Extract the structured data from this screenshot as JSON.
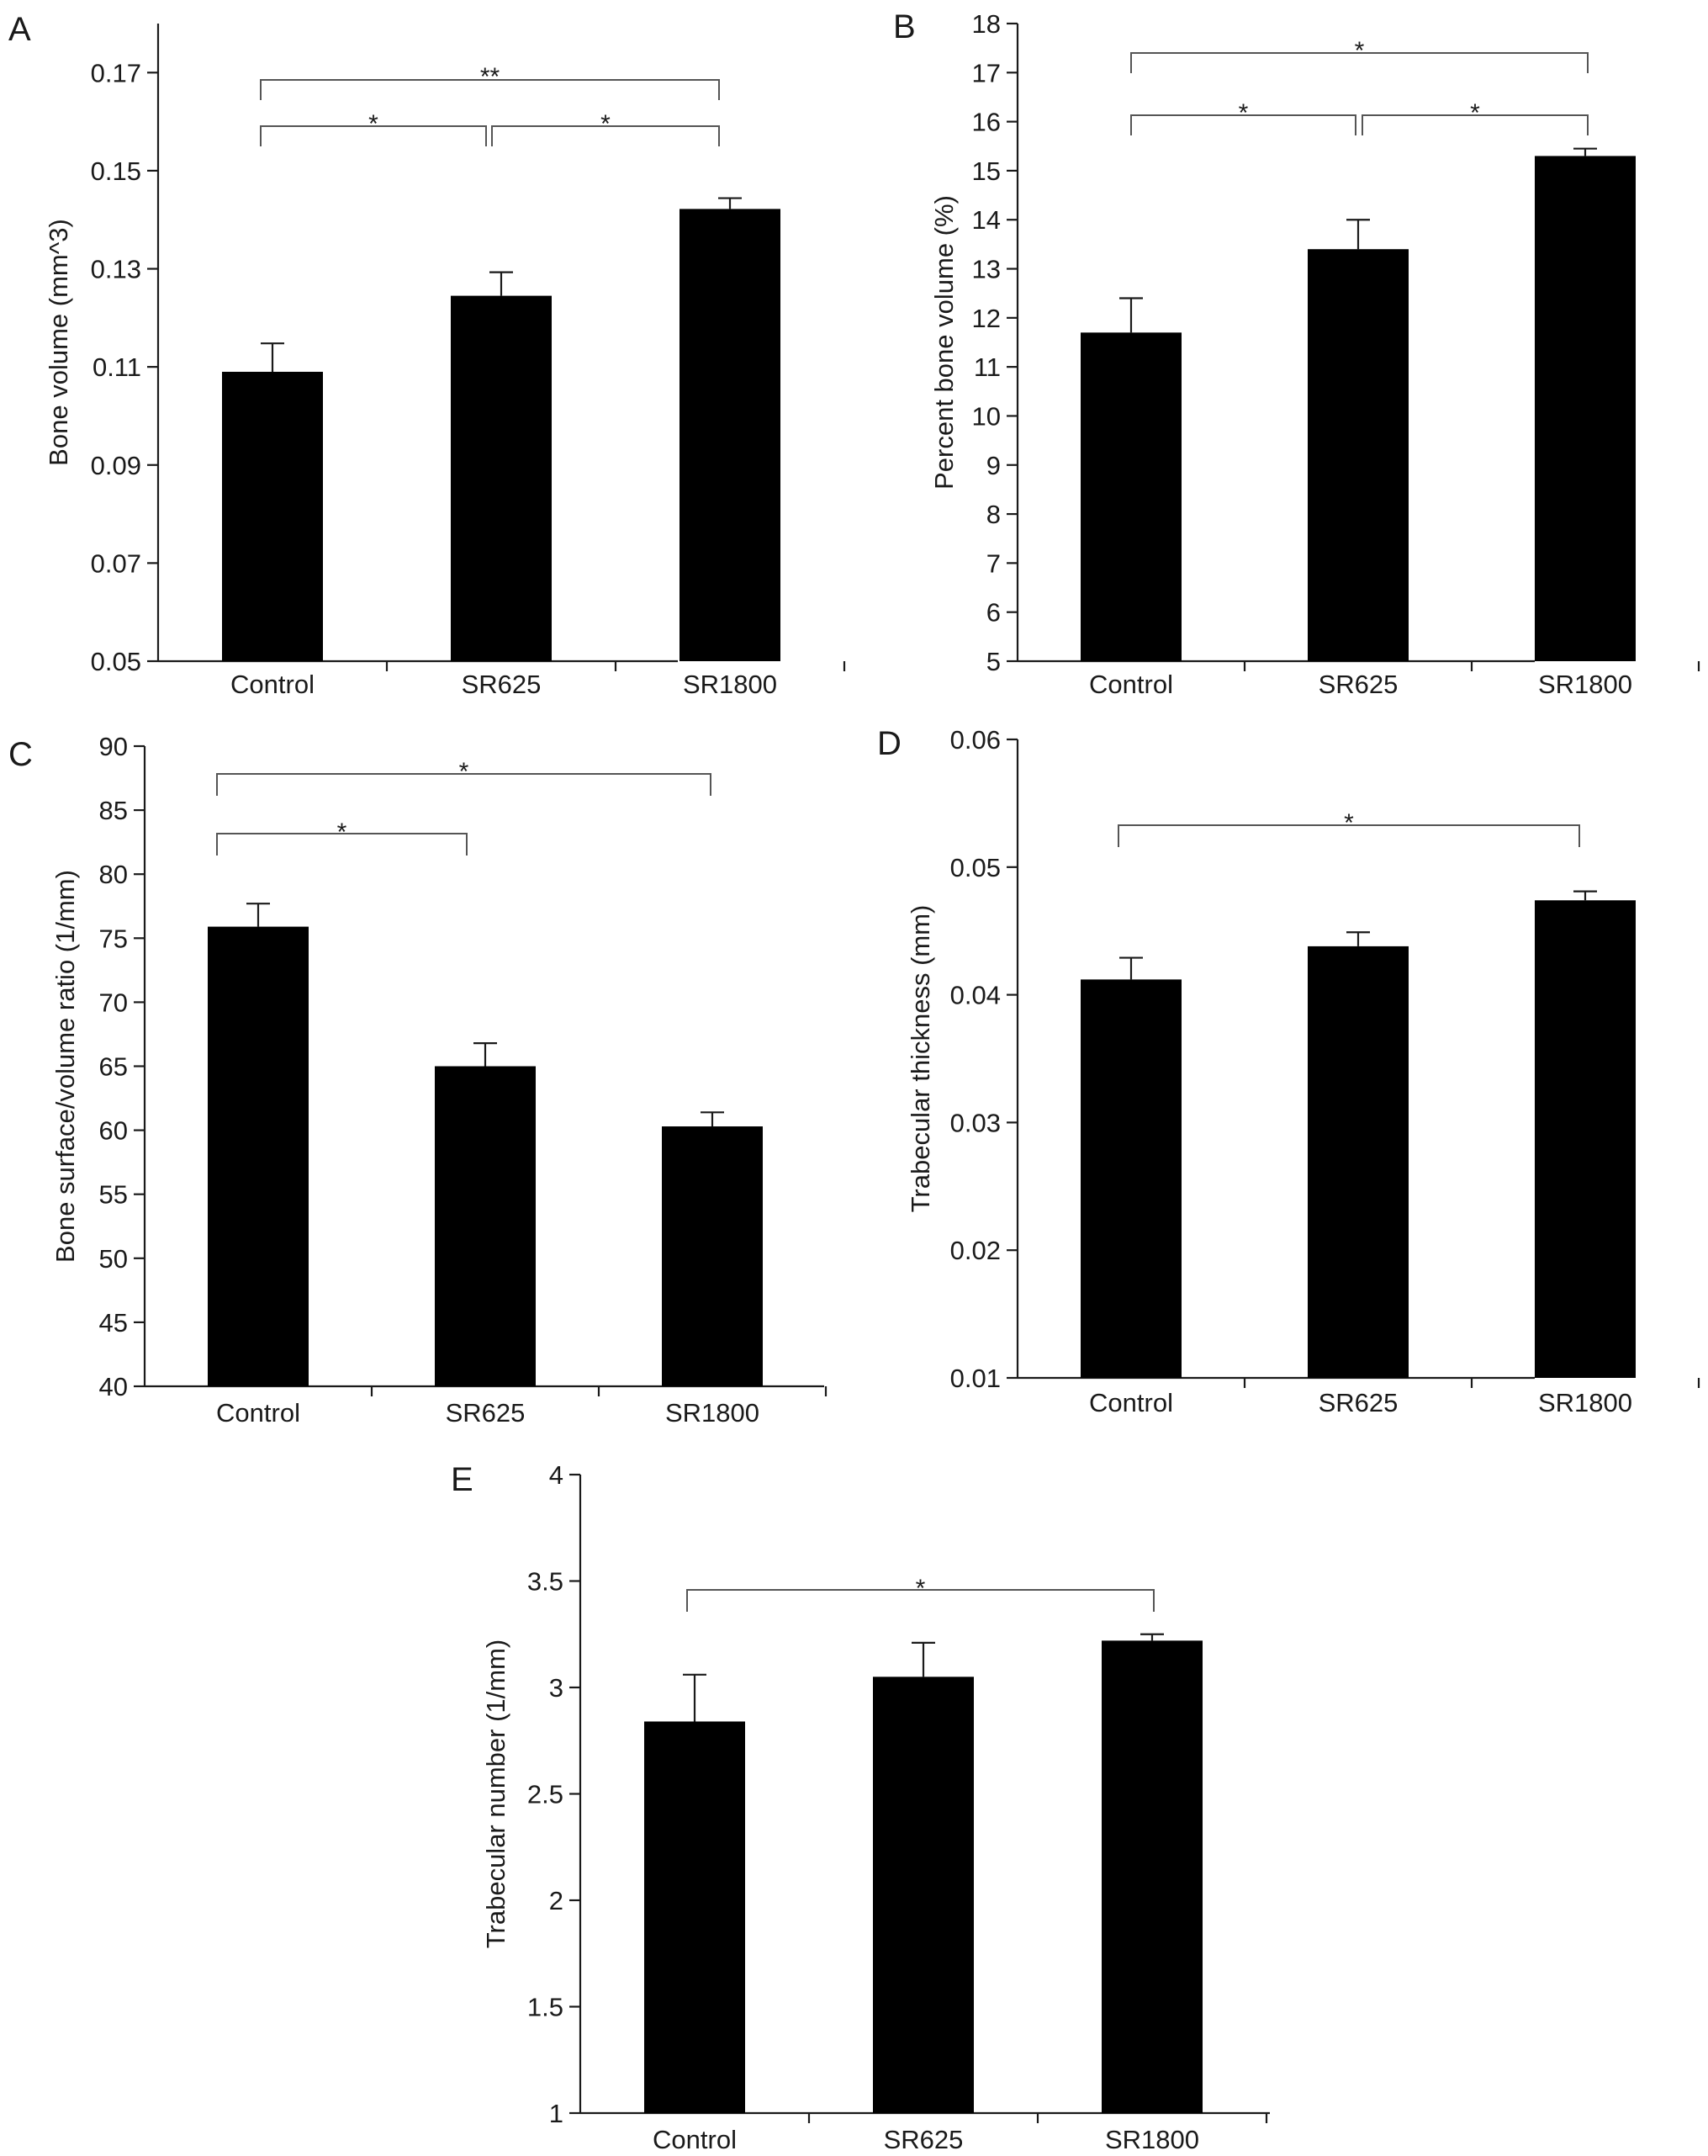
{
  "chart_data": [
    {
      "panel": "A",
      "type": "bar",
      "categories": [
        "Control",
        "SR625",
        "SR1800"
      ],
      "values": [
        0.109,
        0.1245,
        0.1422
      ],
      "errors": [
        0.0058,
        0.0048,
        0.0022
      ],
      "ylabel": "Bone volume (mm^3)",
      "ylim": [
        0.05,
        0.18
      ],
      "yticks": [
        "0.05",
        "0.07",
        "0.09",
        "0.11",
        "0.13",
        "0.15",
        "0.17"
      ],
      "grid": false,
      "significance": [
        {
          "from": 0,
          "to": 1,
          "label": "*"
        },
        {
          "from": 1,
          "to": 2,
          "label": "*"
        },
        {
          "from": 0,
          "to": 2,
          "label": "**"
        }
      ]
    },
    {
      "panel": "B",
      "type": "bar",
      "categories": [
        "Control",
        "SR625",
        "SR1800"
      ],
      "values": [
        11.7,
        13.4,
        15.3
      ],
      "errors": [
        0.7,
        0.6,
        0.15
      ],
      "ylabel": "Percent bone volume (%)",
      "ylim": [
        5,
        18
      ],
      "yticks": [
        "5",
        "6",
        "7",
        "8",
        "9",
        "10",
        "11",
        "12",
        "13",
        "14",
        "15",
        "16",
        "17",
        "18"
      ],
      "grid": false,
      "significance": [
        {
          "from": 0,
          "to": 1,
          "label": "*"
        },
        {
          "from": 1,
          "to": 2,
          "label": "*"
        },
        {
          "from": 0,
          "to": 2,
          "label": "*"
        }
      ]
    },
    {
      "panel": "C",
      "type": "bar",
      "categories": [
        "Control",
        "SR625",
        "SR1800"
      ],
      "values": [
        75.9,
        65.0,
        60.3
      ],
      "errors": [
        1.8,
        1.8,
        1.1
      ],
      "ylabel": "Bone surface/volume ratio (1/mm)",
      "ylim": [
        40,
        90
      ],
      "yticks": [
        "40",
        "45",
        "50",
        "55",
        "60",
        "65",
        "70",
        "75",
        "80",
        "85",
        "90"
      ],
      "grid": false,
      "significance": [
        {
          "from": 0,
          "to": 1,
          "label": "*"
        },
        {
          "from": 0,
          "to": 2,
          "label": "*"
        }
      ]
    },
    {
      "panel": "D",
      "type": "bar",
      "categories": [
        "Control",
        "SR625",
        "SR1800"
      ],
      "values": [
        0.0412,
        0.0438,
        0.0474
      ],
      "errors": [
        0.0017,
        0.0011,
        0.0007
      ],
      "ylabel": "Trabecular thickness (mm)",
      "ylim": [
        0.01,
        0.06
      ],
      "yticks": [
        "0.01",
        "0.02",
        "0.03",
        "0.04",
        "0.05",
        "0.06"
      ],
      "grid": false,
      "significance": [
        {
          "from": 0,
          "to": 2,
          "label": "*"
        }
      ]
    },
    {
      "panel": "E",
      "type": "bar",
      "categories": [
        "Control",
        "SR625",
        "SR1800"
      ],
      "values": [
        2.84,
        3.05,
        3.22
      ],
      "errors": [
        0.22,
        0.16,
        0.03
      ],
      "ylabel": "Trabecular number (1/mm)",
      "ylim": [
        1,
        4
      ],
      "yticks": [
        "1",
        "1.5",
        "2",
        "2.5",
        "3",
        "3.5",
        "4"
      ],
      "grid": false,
      "significance": [
        {
          "from": 0,
          "to": 2,
          "label": "*"
        }
      ]
    }
  ]
}
